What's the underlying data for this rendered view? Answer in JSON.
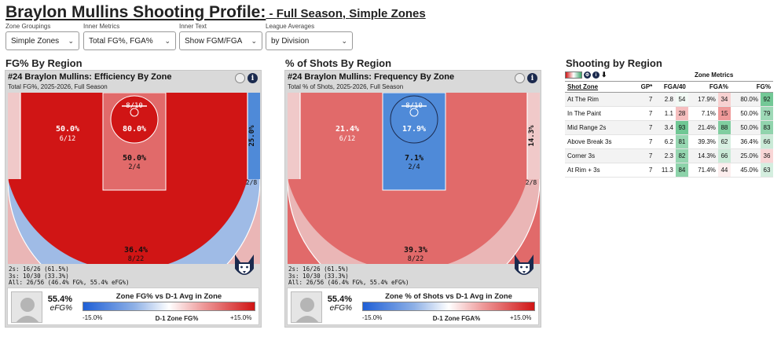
{
  "header": {
    "title": "Braylon Mullins Shooting Profile:",
    "subtitle_prefix": " - ",
    "subtitle_part1": "Full Season",
    "subtitle_sep": ", ",
    "subtitle_part2": "Simple Zones"
  },
  "controls": [
    {
      "label": "Zone Groupings",
      "value": "Simple Zones"
    },
    {
      "label": "Inner Metrics",
      "value": "Total FG%, FGA%"
    },
    {
      "label": "Inner Text",
      "value": "Show FGM/FGA"
    },
    {
      "label": "League Averages",
      "value": "by Division"
    }
  ],
  "sections": {
    "left": "FG% By Region",
    "middle": "% of Shots By Region",
    "right": "Shooting by Region"
  },
  "colors": {
    "deep_red": "#d01515",
    "mid_red": "#e16a6a",
    "light_red": "#eab6b6",
    "pink": "#f0c9c9",
    "blue": "#4f8ad8",
    "light_blue": "#9fbbe6",
    "navy": "#1b2a4e"
  },
  "efficiency_panel": {
    "heading": "#24 Braylon Mullins: Efficiency By Zone",
    "subheading": "Total FG%, 2025-2026, Full Season",
    "zones": {
      "rim": {
        "pct": "80.0%",
        "frac": "8/10"
      },
      "paint": {
        "pct": "50.0%",
        "frac": "2/4"
      },
      "mid": {
        "pct": "50.0%",
        "frac": "6/12"
      },
      "corner": {
        "pct": "25.0%",
        "frac": "2/8"
      },
      "above": {
        "pct": "36.4%",
        "frac": "8/22"
      }
    },
    "totals": [
      "2s: 16/26 (61.5%)",
      "3s: 10/30 (33.3%)",
      "All: 26/56 (46.4% FG%, 55.4% eFG%)"
    ],
    "efg_value": "55.4%",
    "efg_label": "eFG%",
    "legend_title": "Zone FG% vs D-1 Avg in Zone",
    "legend_min": "-15.0%",
    "legend_mid": "D-1 Zone FG%",
    "legend_max": "+15.0%"
  },
  "frequency_panel": {
    "heading": "#24 Braylon Mullins: Frequency By Zone",
    "subheading": "Total % of Shots, 2025-2026, Full Season",
    "zones": {
      "rim": {
        "pct": "17.9%",
        "frac": "8/10"
      },
      "paint": {
        "pct": "7.1%",
        "frac": "2/4"
      },
      "mid": {
        "pct": "21.4%",
        "frac": "6/12"
      },
      "corner": {
        "pct": "14.3%",
        "frac": "2/8"
      },
      "above": {
        "pct": "39.3%",
        "frac": "8/22"
      }
    },
    "totals": [
      "2s: 16/26 (61.5%)",
      "3s: 10/30 (33.3%)",
      "All: 26/56 (46.4% FG%, 55.4% eFG%)"
    ],
    "efg_value": "55.4%",
    "efg_label": "eFG%",
    "legend_title": "Zone % of Shots vs D-1 Avg in Zone",
    "legend_min": "-15.0%",
    "legend_mid": "D-1 Zone FGA%",
    "legend_max": "+15.0%"
  },
  "table": {
    "group_header": "Zone Metrics",
    "columns": [
      "Shot Zone",
      "GP*",
      "FGA/40",
      "FGA%",
      "FG%"
    ],
    "rows": [
      {
        "zone": "At The Rim",
        "gp": "7",
        "fga40": "2.8",
        "fga40_p": "54",
        "fgapct": "17.9%",
        "fgapct_p": "34",
        "fg": "80.0%",
        "fg_p": "92"
      },
      {
        "zone": "In The Paint",
        "gp": "7",
        "fga40": "1.1",
        "fga40_p": "28",
        "fgapct": "7.1%",
        "fgapct_p": "15",
        "fg": "50.0%",
        "fg_p": "79"
      },
      {
        "zone": "Mid Range 2s",
        "gp": "7",
        "fga40": "3.4",
        "fga40_p": "93",
        "fgapct": "21.4%",
        "fgapct_p": "88",
        "fg": "50.0%",
        "fg_p": "83"
      },
      {
        "zone": "Above Break 3s",
        "gp": "7",
        "fga40": "6.2",
        "fga40_p": "81",
        "fgapct": "39.3%",
        "fgapct_p": "62",
        "fg": "36.4%",
        "fg_p": "66"
      },
      {
        "zone": "Corner 3s",
        "gp": "7",
        "fga40": "2.3",
        "fga40_p": "82",
        "fgapct": "14.3%",
        "fgapct_p": "66",
        "fg": "25.0%",
        "fg_p": "36"
      },
      {
        "zone": "At Rim + 3s",
        "gp": "7",
        "fga40": "11.3",
        "fga40_p": "84",
        "fgapct": "71.4%",
        "fgapct_p": "44",
        "fg": "45.0%",
        "fg_p": "63"
      }
    ]
  }
}
